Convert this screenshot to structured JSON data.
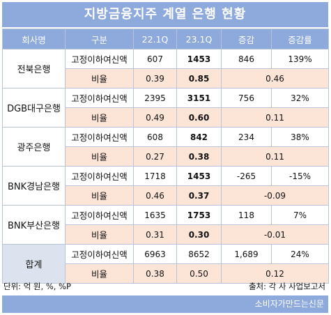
{
  "title": "지방금융지주 계열 은행 현황",
  "headers": [
    "회사명",
    "구분",
    "22.1Q",
    "23.1Q",
    "증감",
    "증감률"
  ],
  "banks": [
    {
      "name": "전북은행",
      "amount": {
        "label": "고정이하여신액",
        "q22": "607",
        "q23": "1453",
        "change": "846",
        "rate": "139%"
      },
      "ratio": {
        "label": "비율",
        "q22": "0.39",
        "q23": "0.85",
        "change": "0.46"
      }
    },
    {
      "name": "DGB대구은행",
      "amount": {
        "label": "고정이하여신액",
        "q22": "2395",
        "q23": "3151",
        "change": "756",
        "rate": "32%"
      },
      "ratio": {
        "label": "비율",
        "q22": "0.49",
        "q23": "0.60",
        "change": "0.11"
      }
    },
    {
      "name": "광주은행",
      "amount": {
        "label": "고정이하여신액",
        "q22": "608",
        "q23": "842",
        "change": "234",
        "rate": "38%"
      },
      "ratio": {
        "label": "비율",
        "q22": "0.27",
        "q23": "0.38",
        "change": "0.11"
      }
    },
    {
      "name": "BNK경남은행",
      "amount": {
        "label": "고정이하여신액",
        "q22": "1718",
        "q23": "1453",
        "change": "-265",
        "rate": "-15%"
      },
      "ratio": {
        "label": "비율",
        "q22": "0.46",
        "q23": "0.37",
        "change": "-0.09"
      }
    },
    {
      "name": "BNK부산은행",
      "amount": {
        "label": "고정이하여신액",
        "q22": "1635",
        "q23": "1753",
        "change": "118",
        "rate": "7%"
      },
      "ratio": {
        "label": "비율",
        "q22": "0.31",
        "q23": "0.30",
        "change": "-0.01"
      }
    },
    {
      "name": "합계",
      "amount": {
        "label": "고정이하여신액",
        "q22": "6963",
        "q23": "8652",
        "change": "1,689",
        "rate": "24%"
      },
      "ratio": {
        "label": "비율",
        "q22": "0.38",
        "q23": "0.50",
        "change": "0.12"
      }
    }
  ],
  "unit_note": "단위: 억 원, %, %P",
  "source_note": "출처: 각 사 사업보고서",
  "brand": "소비자가만드는신문",
  "colors": {
    "header": "#8ea9db",
    "ratio_row": "#fce4d6",
    "total_name": "#dde3ee"
  }
}
